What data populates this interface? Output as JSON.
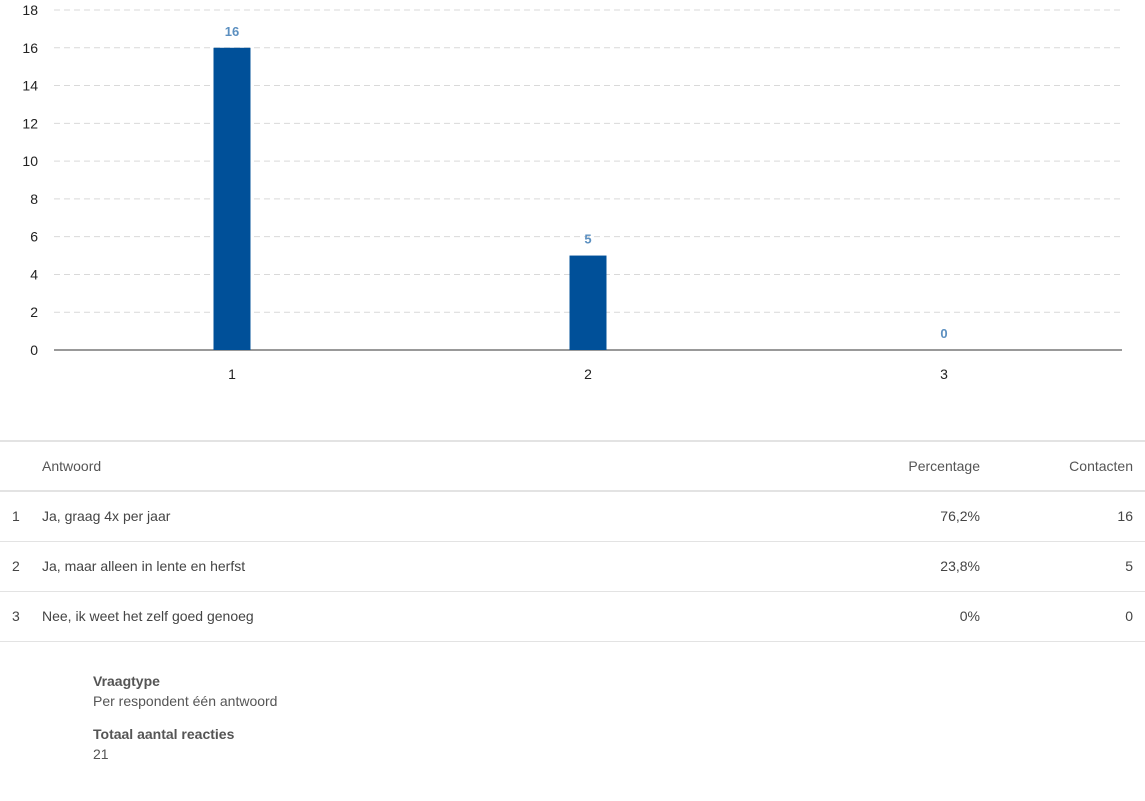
{
  "chart_data": {
    "type": "bar",
    "categories": [
      "1",
      "2",
      "3"
    ],
    "values": [
      16,
      5,
      0
    ],
    "ylim": [
      0,
      18
    ],
    "yticks": [
      0,
      2,
      4,
      6,
      8,
      10,
      12,
      14,
      16,
      18
    ],
    "grid": true,
    "title": "",
    "xlabel": "",
    "ylabel": "",
    "bar_color": "#005099",
    "label_color": "#5b8fc0"
  },
  "table": {
    "headers": {
      "answer": "Antwoord",
      "percentage": "Percentage",
      "contacts": "Contacten"
    },
    "rows": [
      {
        "num": "1",
        "answer": "Ja, graag 4x per jaar",
        "percentage": "76,2%",
        "contacts": "16"
      },
      {
        "num": "2",
        "answer": "Ja, maar alleen in lente en herfst",
        "percentage": "23,8%",
        "contacts": "5"
      },
      {
        "num": "3",
        "answer": "Nee, ik weet het zelf goed genoeg",
        "percentage": "0%",
        "contacts": "0"
      }
    ]
  },
  "meta": {
    "question_type_label": "Vraagtype",
    "question_type_value": "Per respondent één antwoord",
    "total_label": "Totaal aantal reacties",
    "total_value": "21"
  }
}
